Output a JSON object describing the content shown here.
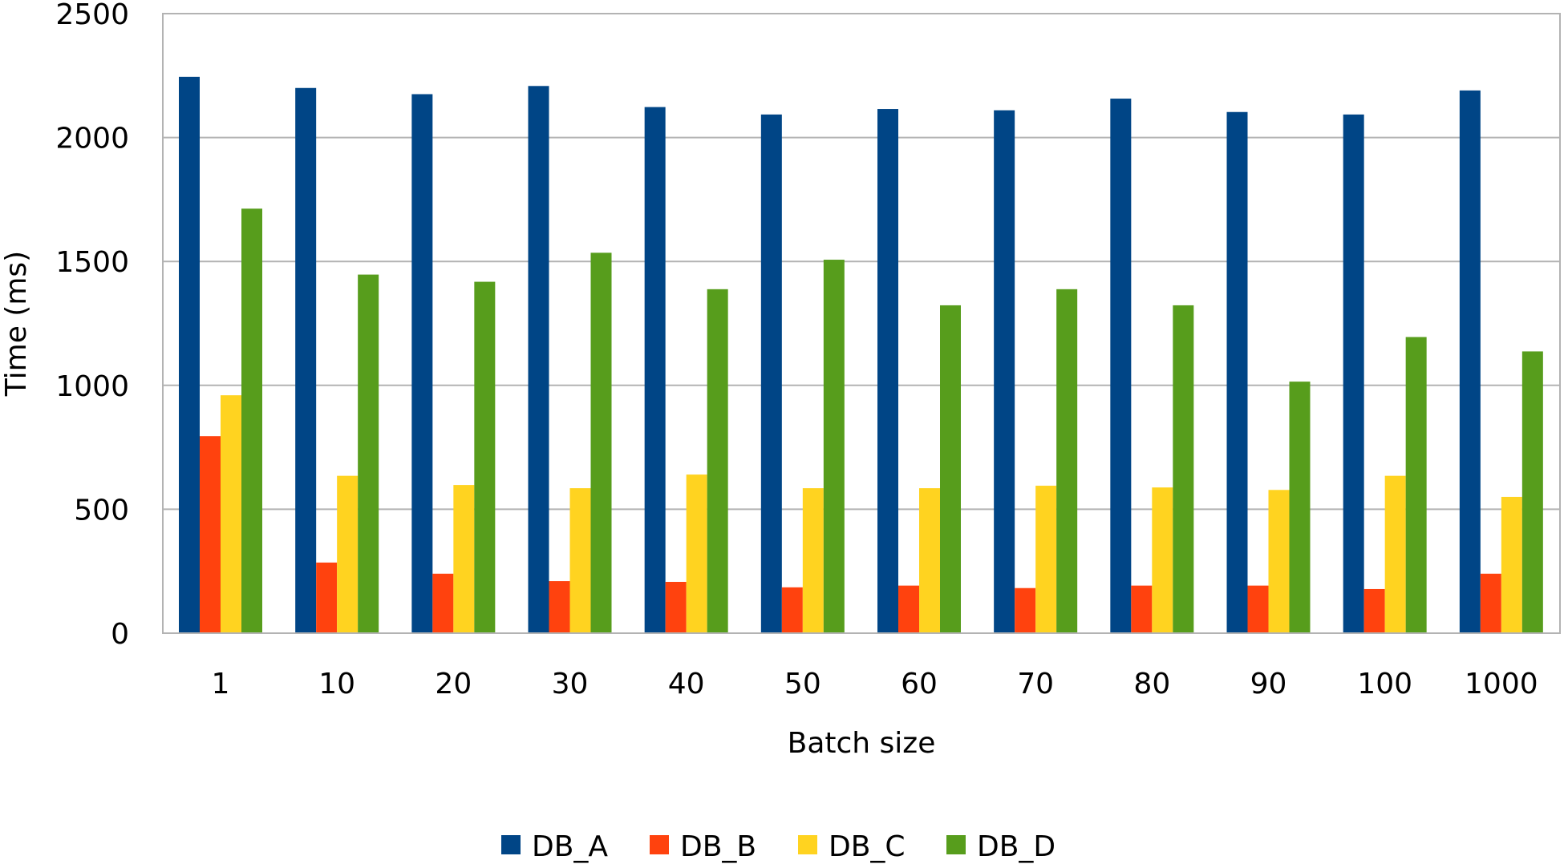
{
  "chart_data": {
    "type": "bar",
    "title": "",
    "xlabel": "Batch size",
    "ylabel": "Time (ms)",
    "ylim": [
      0,
      2500
    ],
    "yticks": [
      0,
      500,
      1000,
      1500,
      2000,
      2500
    ],
    "grid": true,
    "legend_position": "bottom",
    "categories": [
      "1",
      "10",
      "20",
      "30",
      "40",
      "50",
      "60",
      "70",
      "80",
      "90",
      "100",
      "1000"
    ],
    "series": [
      {
        "name": "DB_A",
        "color": "#004586",
        "values": [
          2245,
          2200,
          2175,
          2208,
          2123,
          2093,
          2115,
          2110,
          2157,
          2103,
          2093,
          2190
        ]
      },
      {
        "name": "DB_B",
        "color": "#FF420E",
        "values": [
          795,
          285,
          240,
          210,
          207,
          185,
          192,
          182,
          192,
          192,
          178,
          240
        ]
      },
      {
        "name": "DB_C",
        "color": "#FFD320",
        "values": [
          960,
          635,
          598,
          585,
          640,
          585,
          585,
          595,
          588,
          578,
          635,
          550
        ]
      },
      {
        "name": "DB_D",
        "color": "#579D1C",
        "values": [
          1713,
          1447,
          1418,
          1535,
          1388,
          1507,
          1323,
          1388,
          1323,
          1015,
          1195,
          1137
        ]
      }
    ]
  }
}
